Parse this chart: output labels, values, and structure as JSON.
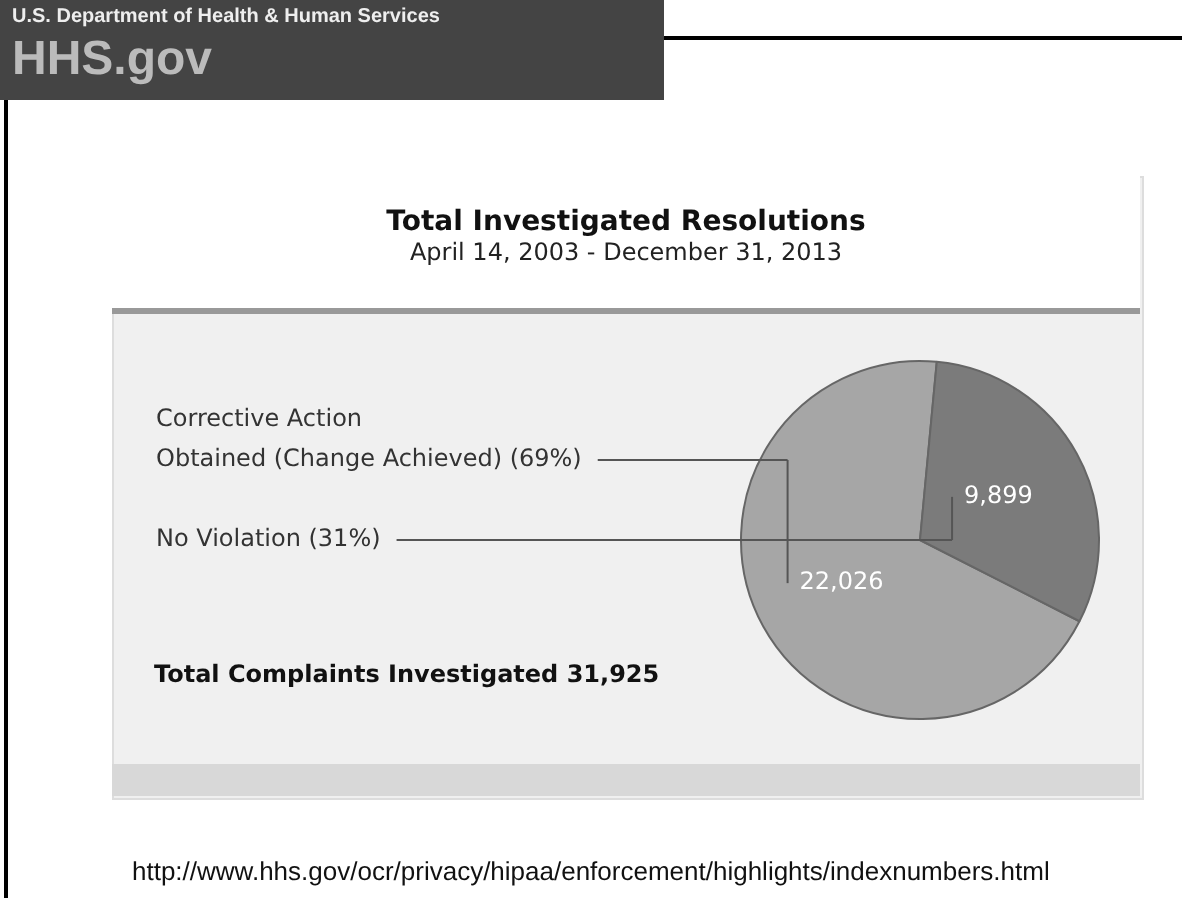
{
  "chart_data": {
    "type": "pie",
    "title": "Total Investigated Resolutions",
    "subtitle": "April 14, 2003 - December 31, 2013",
    "categories": [
      "Corrective Action Obtained (Change Achieved) (69%)",
      "No Violation (31%)"
    ],
    "values": [
      22026,
      9899
    ],
    "colors": [
      "#a6a6a6",
      "#7b7b7b"
    ],
    "value_labels": [
      "22,026",
      "9,899"
    ],
    "legend": false,
    "annotations": [
      "U.S. Department of Health & Human Services",
      "HHS.gov",
      "Total Complaints Investigated 31,925",
      "http://www.hhs.gov/ocr/privacy/hipaa/enforcement/highlights/indexnumbers.html"
    ]
  }
}
